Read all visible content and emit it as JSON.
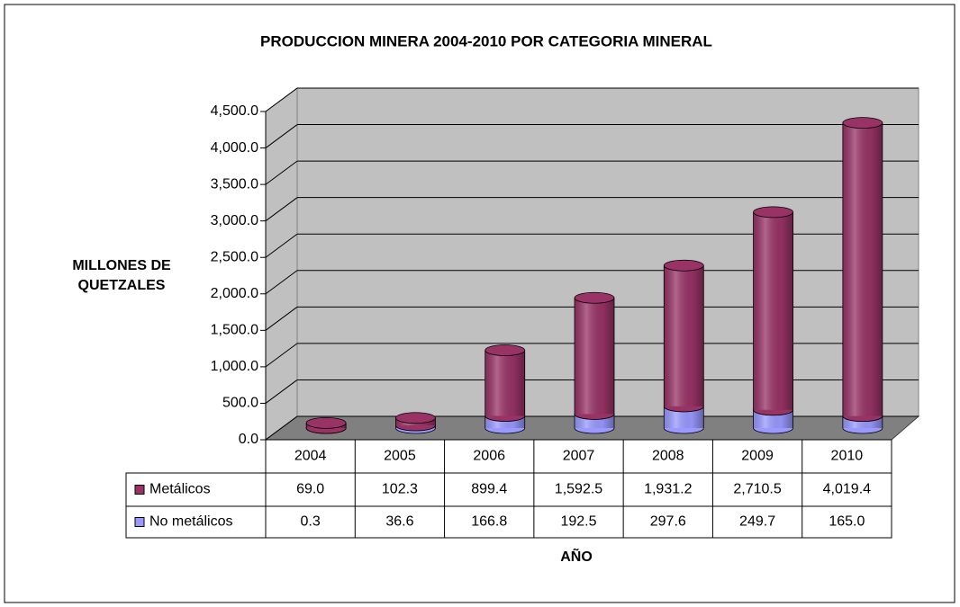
{
  "chart_data": {
    "type": "bar3d_stacked",
    "title": "PRODUCCION MINERA 2004-2010 POR CATEGORIA MINERAL",
    "ylabel": [
      "MILLONES DE",
      "QUETZALES"
    ],
    "xlabel": "AÑO",
    "categories": [
      "2004",
      "2005",
      "2006",
      "2007",
      "2008",
      "2009",
      "2010"
    ],
    "series": [
      {
        "name": "Metálicos",
        "color": "#993366",
        "values": [
          69.0,
          102.3,
          899.4,
          1592.5,
          1931.2,
          2710.5,
          4019.4
        ],
        "value_labels": [
          "69.0",
          "102.3",
          "899.4",
          "1,592.5",
          "1,931.2",
          "2,710.5",
          "4,019.4"
        ]
      },
      {
        "name": "No metálicos",
        "color": "#9999ff",
        "values": [
          0.3,
          36.6,
          166.8,
          192.5,
          297.6,
          249.7,
          165.0
        ],
        "value_labels": [
          "0.3",
          "36.6",
          "166.8",
          "192.5",
          "297.6",
          "249.7",
          "165.0"
        ]
      }
    ],
    "ylim": [
      0,
      4500
    ],
    "yticks": [
      {
        "value": 0,
        "label": "0.0"
      },
      {
        "value": 500,
        "label": "500.0"
      },
      {
        "value": 1000,
        "label": "1,000.0"
      },
      {
        "value": 1500,
        "label": "1,500.0"
      },
      {
        "value": 2000,
        "label": "2,000.0"
      },
      {
        "value": 2500,
        "label": "2,500.0"
      },
      {
        "value": 3000,
        "label": "3,000.0"
      },
      {
        "value": 3500,
        "label": "3,500.0"
      },
      {
        "value": 4000,
        "label": "4,000.0"
      },
      {
        "value": 4500,
        "label": "4,500.0"
      }
    ],
    "grid": true
  }
}
